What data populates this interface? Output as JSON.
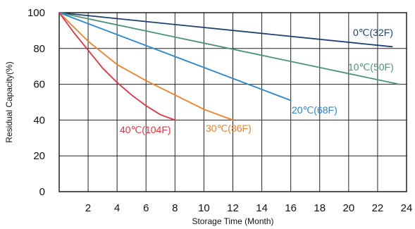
{
  "chart_data": {
    "type": "line",
    "xlabel": "Storage Time (Month)",
    "ylabel": "Residual Capacity(%)",
    "xlim": [
      0,
      24
    ],
    "ylim": [
      0,
      100
    ],
    "x_ticks": [
      "2",
      "4",
      "6",
      "8",
      "10",
      "12",
      "14",
      "16",
      "18",
      "20",
      "22",
      "24"
    ],
    "y_ticks": [
      "0",
      "20",
      "40",
      "60",
      "80",
      "100"
    ],
    "grid": true,
    "series": [
      {
        "name": "0℃(32F)",
        "color": "#1f3f6e",
        "x": [
          0,
          23
        ],
        "y": [
          100,
          81
        ]
      },
      {
        "name": "10℃(50F)",
        "color": "#4a9270",
        "x": [
          0,
          23.5
        ],
        "y": [
          100,
          60
        ]
      },
      {
        "name": "20℃(68F)",
        "color": "#2a86d0",
        "x": [
          0,
          16
        ],
        "y": [
          100,
          51
        ]
      },
      {
        "name": "30℃(86F)",
        "color": "#f07f28",
        "x": [
          0,
          2,
          4,
          6,
          8,
          10,
          12
        ],
        "y": [
          100,
          84,
          71,
          62,
          54,
          46,
          40
        ]
      },
      {
        "name": "40℃(104F)",
        "color": "#e23340",
        "x": [
          0,
          1,
          2,
          3,
          4,
          5,
          6,
          7,
          8
        ],
        "y": [
          100,
          89,
          79,
          69,
          61,
          54,
          48,
          43,
          40
        ]
      }
    ]
  }
}
